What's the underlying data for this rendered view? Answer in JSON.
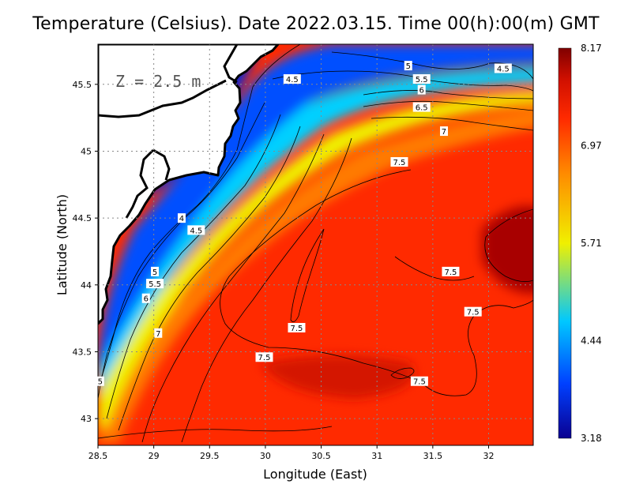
{
  "title": "Temperature (Celsius). Date 2022.03.15. Time 00(h):00(m)  GMT",
  "depth_label": "Z = 2.5 m",
  "x_axis": {
    "label": "Longitude (East)",
    "range": [
      28.5,
      32.4
    ],
    "ticks": [
      28.5,
      29,
      29.5,
      30,
      30.5,
      31,
      31.5,
      32
    ],
    "tick_labels": [
      "28.5",
      "29",
      "29.5",
      "30",
      "30.5",
      "31",
      "31.5",
      "32"
    ]
  },
  "y_axis": {
    "label": "Latitude (North)",
    "range": [
      42.8,
      45.8
    ],
    "ticks": [
      43,
      43.5,
      44,
      44.5,
      45,
      45.5
    ],
    "tick_labels": [
      "43",
      "43.5",
      "44",
      "44.5",
      "45",
      "45.5"
    ]
  },
  "grid": "dotted",
  "colorbar": {
    "min": 3.18,
    "max": 8.17,
    "tick_labels": [
      "8.17",
      "6.97",
      "5.71",
      "4.44",
      "3.18"
    ],
    "colors": [
      "#0a0090",
      "#0050ff",
      "#00c8ff",
      "#ffff00",
      "#ff8000",
      "#ff2000",
      "#800000"
    ]
  },
  "contour_labels": [
    {
      "text": "5",
      "lon": 31.28,
      "lat": 45.64
    },
    {
      "text": "4.5",
      "lon": 32.13,
      "lat": 45.62
    },
    {
      "text": "4.5",
      "lon": 30.24,
      "lat": 45.54
    },
    {
      "text": "5.5",
      "lon": 31.4,
      "lat": 45.54
    },
    {
      "text": "6",
      "lon": 31.4,
      "lat": 45.46
    },
    {
      "text": "6.5",
      "lon": 31.4,
      "lat": 45.33
    },
    {
      "text": "7",
      "lon": 31.6,
      "lat": 45.15
    },
    {
      "text": "7.5",
      "lon": 31.2,
      "lat": 44.92
    },
    {
      "text": "4",
      "lon": 29.25,
      "lat": 44.5
    },
    {
      "text": "4.5",
      "lon": 29.38,
      "lat": 44.41
    },
    {
      "text": "5",
      "lon": 29.01,
      "lat": 44.1
    },
    {
      "text": "5.5",
      "lon": 29.01,
      "lat": 44.01
    },
    {
      "text": "6",
      "lon": 28.93,
      "lat": 43.9
    },
    {
      "text": "7",
      "lon": 29.04,
      "lat": 43.64
    },
    {
      "text": "7.5",
      "lon": 31.66,
      "lat": 44.1
    },
    {
      "text": "7.5",
      "lon": 31.86,
      "lat": 43.8
    },
    {
      "text": "7.5",
      "lon": 30.28,
      "lat": 43.68
    },
    {
      "text": "7.5",
      "lon": 29.99,
      "lat": 43.46
    },
    {
      "text": "7.5",
      "lon": 31.38,
      "lat": 43.28
    },
    {
      "text": "5",
      "lon": 28.52,
      "lat": 43.28
    }
  ]
}
